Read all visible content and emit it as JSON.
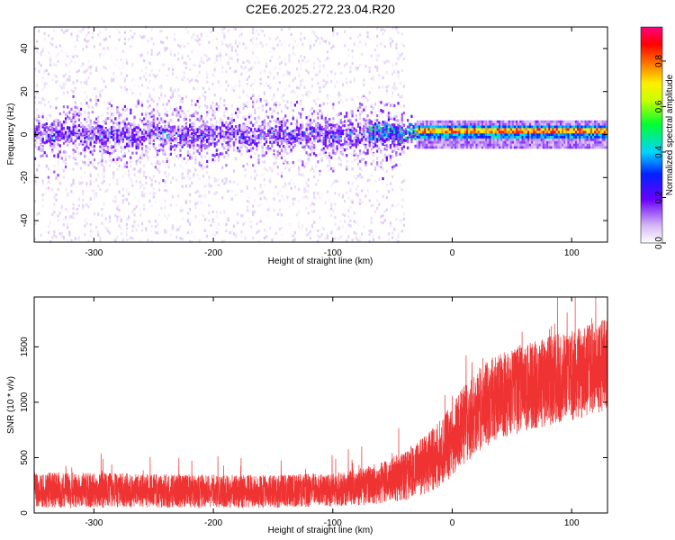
{
  "figure_title": "C2E6.2025.272.23.04.R20",
  "chart_data": [
    {
      "type": "heatmap",
      "name": "spectrogram",
      "title": "C2E6.2025.272.23.04.R20",
      "xlabel": "Height of straight line (km)",
      "ylabel": "Frequency (Hz)",
      "xlim": [
        -350,
        130
      ],
      "ylim": [
        -50,
        50
      ],
      "x_ticks": [
        -300,
        -200,
        -100,
        0,
        100
      ],
      "y_ticks": [
        -40,
        -20,
        0,
        20,
        40
      ],
      "colorbar": {
        "label": "Normalized spectral amplitude",
        "range": [
          0,
          0.95
        ],
        "ticks": [
          0.0,
          0.2,
          0.4,
          0.6,
          0.8
        ],
        "colormap": "rainbow (white-violet-blue-cyan-green-yellow-orange-red-magenta)"
      },
      "regions": [
        {
          "x_range": [
            -350,
            -40
          ],
          "freq_spread_hz": [
            -50,
            50
          ],
          "core_band_hz": [
            -8,
            8
          ],
          "typical_amplitude": 0.15,
          "peak_amplitude": 0.3
        },
        {
          "x_range": [
            -70,
            -30
          ],
          "freq_spread_hz": [
            -10,
            10
          ],
          "core_band_hz": [
            -3,
            3
          ],
          "typical_amplitude": 0.4,
          "peak_amplitude": 0.55
        },
        {
          "x_range": [
            -30,
            130
          ],
          "freq_spread_hz": [
            -5,
            6
          ],
          "core_band_hz": [
            0.5,
            2.5
          ],
          "typical_amplitude": 0.75,
          "peak_amplitude": 0.92
        }
      ]
    },
    {
      "type": "line",
      "name": "snr",
      "xlabel": "Height of straight line (km)",
      "ylabel": "SNR (10 * v/v)",
      "xlim": [
        -350,
        130
      ],
      "ylim": [
        0,
        1950
      ],
      "x_ticks": [
        -300,
        -200,
        -100,
        0,
        100
      ],
      "y_ticks": [
        0,
        500,
        1000,
        1500
      ],
      "color": "#ef3232",
      "series": [
        {
          "name": "SNR",
          "x": [
            -350,
            -300,
            -250,
            -200,
            -150,
            -100,
            -75,
            -50,
            -40,
            -25,
            -10,
            0,
            10,
            25,
            40,
            60,
            80,
            100,
            120,
            130
          ],
          "mean": [
            210,
            205,
            200,
            195,
            195,
            210,
            240,
            300,
            340,
            420,
            540,
            660,
            800,
            960,
            1060,
            1130,
            1190,
            1240,
            1300,
            1340
          ],
          "spread": [
            160,
            160,
            150,
            150,
            150,
            150,
            170,
            200,
            230,
            260,
            300,
            330,
            360,
            380,
            390,
            400,
            400,
            410,
            420,
            420
          ]
        }
      ]
    }
  ]
}
